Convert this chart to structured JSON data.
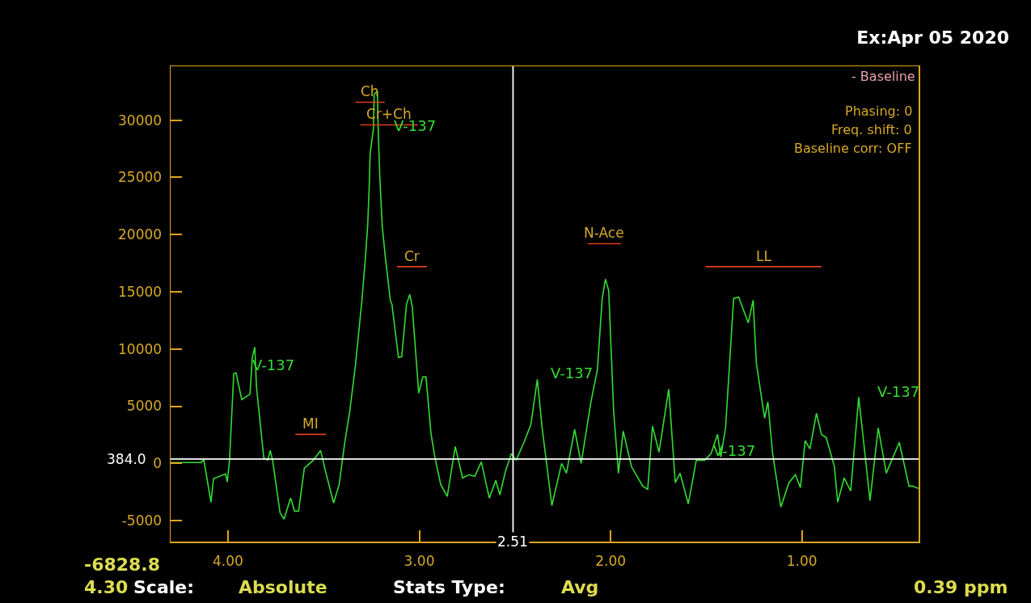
{
  "chart_data": {
    "type": "line",
    "title": "Ex:Apr 05 2020",
    "xlim": [
      4.3,
      0.39
    ],
    "xticks": [
      {
        "value": 4,
        "label": "4.00"
      },
      {
        "value": 3,
        "label": "3.00"
      },
      {
        "value": 2,
        "label": "2.00"
      },
      {
        "value": 1,
        "label": "1.00"
      }
    ],
    "ylim": [
      -6828.8,
      34700
    ],
    "yticks": [
      -5000,
      0,
      5000,
      10000,
      15000,
      20000,
      25000,
      30000
    ],
    "grid": false,
    "legend": false,
    "series": [
      {
        "color": "#33dd33",
        "x": [
          4.3,
          4.14,
          4.127,
          4.089,
          4.076,
          4.013,
          4.004,
          3.992,
          3.97,
          3.958,
          3.928,
          3.885,
          3.873,
          3.86,
          3.851,
          3.813,
          3.792,
          3.779,
          3.767,
          3.728,
          3.707,
          3.673,
          3.652,
          3.631,
          3.601,
          3.554,
          3.516,
          3.491,
          3.448,
          3.419,
          3.389,
          3.364,
          3.334,
          3.3,
          3.283,
          3.27,
          3.262,
          3.257,
          3.24,
          3.236,
          3.219,
          3.215,
          3.207,
          3.194,
          3.177,
          3.151,
          3.143,
          3.109,
          3.092,
          3.067,
          3.05,
          3.037,
          3.003,
          2.982,
          2.965,
          2.939,
          2.918,
          2.888,
          2.854,
          2.812,
          2.774,
          2.74,
          2.71,
          2.676,
          2.634,
          2.6,
          2.579,
          2.549,
          2.519,
          2.494,
          2.451,
          2.417,
          2.383,
          2.358,
          2.307,
          2.256,
          2.231,
          2.188,
          2.154,
          2.103,
          2.069,
          2.044,
          2.027,
          2.01,
          1.984,
          1.959,
          1.934,
          1.891,
          1.832,
          1.806,
          1.781,
          1.747,
          1.696,
          1.662,
          1.637,
          1.594,
          1.552,
          1.509,
          1.475,
          1.441,
          1.424,
          1.399,
          1.357,
          1.331,
          1.28,
          1.255,
          1.238,
          1.195,
          1.178,
          1.153,
          1.11,
          1.068,
          1.034,
          1.008,
          0.983,
          0.958,
          0.924,
          0.898,
          0.873,
          0.83,
          0.813,
          0.779,
          0.745,
          0.703,
          0.678,
          0.644,
          0.601,
          0.559,
          0.491,
          0.44,
          0.423,
          0.39
        ],
        "values": [
          70,
          70,
          350,
          -3390,
          -1340,
          -920,
          -1620,
          280,
          7840,
          7910,
          5580,
          6070,
          9250,
          10170,
          6640,
          490,
          280,
          1130,
          280,
          -4310,
          -4870,
          -3040,
          -4170,
          -4170,
          -420,
          280,
          1130,
          -640,
          -3460,
          -1840,
          1910,
          4520,
          8540,
          14260,
          17720,
          20760,
          24070,
          27110,
          29230,
          32260,
          32550,
          29230,
          25200,
          20760,
          17930,
          14190,
          13910,
          9250,
          9320,
          13910,
          14760,
          13700,
          6140,
          7550,
          7550,
          2610,
          490,
          -1840,
          -2890,
          1480,
          -1270,
          -990,
          -1130,
          140,
          -3040,
          -1480,
          -2750,
          -640,
          850,
          280,
          1910,
          3390,
          7340,
          3110,
          -3670,
          0,
          -850,
          2970,
          0,
          5370,
          8190,
          14400,
          16100,
          15110,
          4520,
          -850,
          2820,
          -280,
          -1980,
          -2260,
          3250,
          990,
          6500,
          -1690,
          -850,
          -3530,
          280,
          280,
          850,
          2540,
          560,
          3110,
          14400,
          14540,
          12280,
          14260,
          8750,
          3950,
          5370,
          850,
          -3810,
          -1690,
          -990,
          -2120,
          1980,
          1270,
          4380,
          2540,
          2260,
          -280,
          -3390,
          -1270,
          -2400,
          5790,
          1980,
          -3250,
          3110,
          -850,
          1840,
          -1980,
          -1980,
          -2190
        ]
      },
      {
        "name": "Ch",
        "color": "#e03c1e",
        "x": [
          3.334,
          3.181
        ],
        "values": [
          31560,
          31560
        ]
      },
      {
        "name": "Cr+Ch",
        "color": "#e03c1e",
        "x": [
          3.308,
          3.007
        ],
        "values": [
          29580,
          29580
        ]
      },
      {
        "name": "Cr",
        "color": "#e03c1e",
        "x": [
          3.117,
          2.96
        ],
        "values": [
          17190,
          17190
        ]
      },
      {
        "name": "MI",
        "color": "#e03c1e",
        "x": [
          3.648,
          3.487
        ],
        "values": [
          2540,
          2540
        ]
      },
      {
        "name": "N-Ace",
        "color": "#e03c1e",
        "x": [
          2.12,
          1.946
        ],
        "values": [
          19200,
          19200
        ]
      },
      {
        "name": "LL",
        "color": "#e03c1e",
        "x": [
          1.505,
          0.898
        ],
        "values": [
          17190,
          17190
        ]
      }
    ],
    "ref_lines": [
      {
        "axis": "y",
        "value": 384.0,
        "label": "384.0",
        "color": "#ffffff"
      },
      {
        "axis": "x",
        "value": 2.51,
        "label": "2.51",
        "color": "#ffffff"
      }
    ],
    "annotations": [
      "- Baseline",
      "Phasing: 0",
      "Freq. shift: 0",
      "Baseline corr: OFF",
      "-6828.8",
      "4.30",
      "Scale:",
      "Absolute",
      "Stats Type:",
      "Avg",
      "0.39 ppm",
      "V-137",
      "V-137",
      "V-137",
      "V-137",
      "V-137"
    ]
  }
}
